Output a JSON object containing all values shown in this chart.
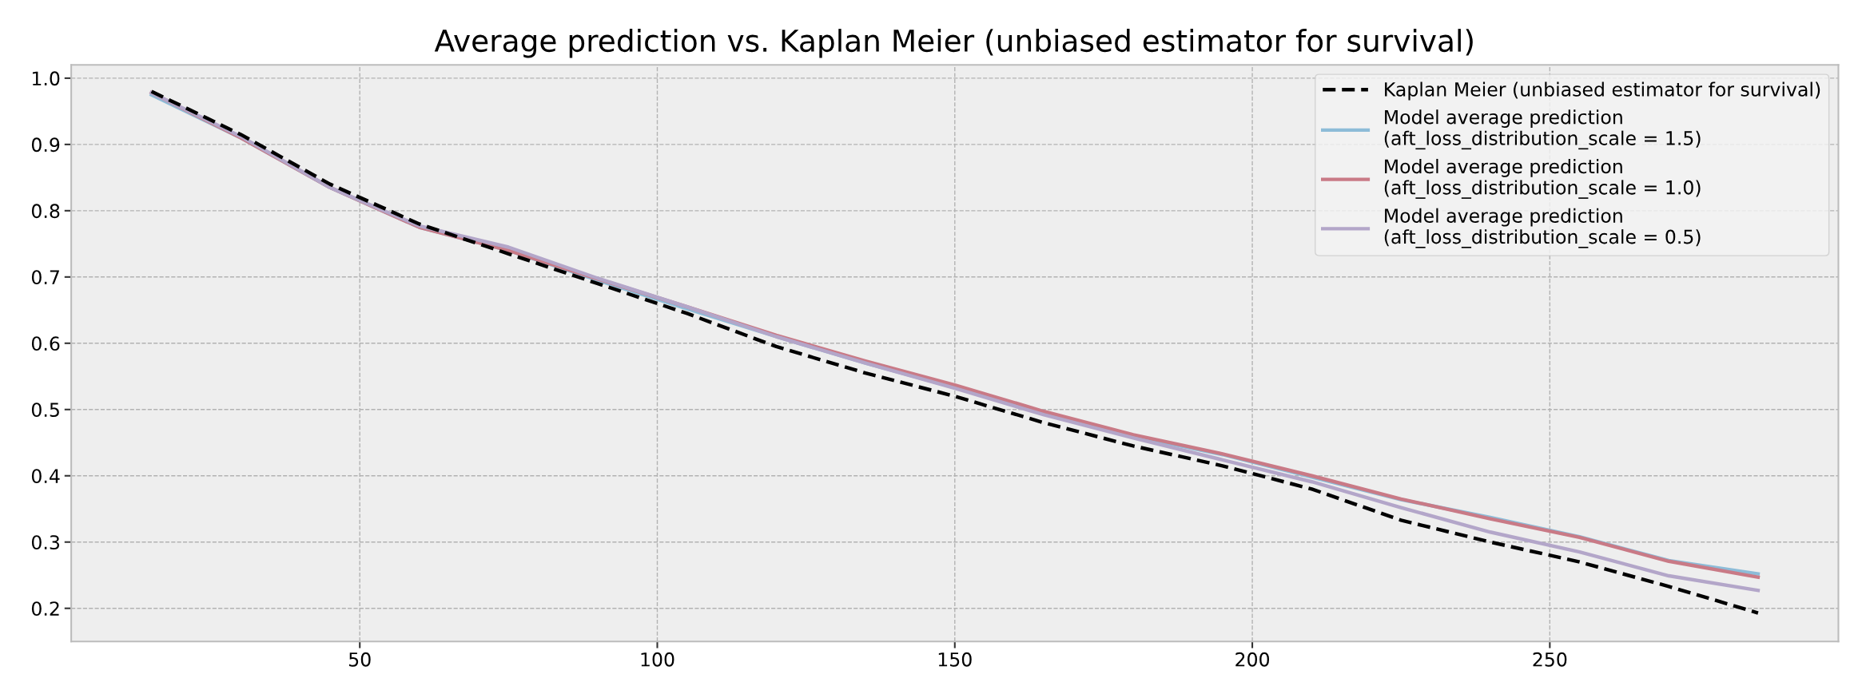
{
  "chart_data": {
    "type": "line",
    "title": "Average prediction vs. Kaplan Meier (unbiased estimator for survival)",
    "x": [
      15,
      30,
      45,
      60,
      75,
      90,
      105,
      120,
      135,
      150,
      165,
      180,
      195,
      210,
      225,
      240,
      255,
      270,
      285
    ],
    "series": [
      {
        "name": "Kaplan Meier (unbiased estimator for survival)",
        "color": "#000000",
        "line_style": "dashed",
        "values": [
          0.98,
          0.915,
          0.84,
          0.78,
          0.735,
          0.69,
          0.645,
          0.595,
          0.555,
          0.52,
          0.48,
          0.445,
          0.415,
          0.38,
          0.333,
          0.3,
          0.27,
          0.233,
          0.193
        ]
      },
      {
        "name": "Model average prediction\n(aft_loss_distribution_scale = 1.5)",
        "color": "#8dbcd8",
        "line_style": "solid",
        "values": [
          0.975,
          0.91,
          0.835,
          0.775,
          0.74,
          0.695,
          0.652,
          0.61,
          0.57,
          0.533,
          0.495,
          0.46,
          0.432,
          0.398,
          0.364,
          0.337,
          0.308,
          0.272,
          0.252
        ]
      },
      {
        "name": "Model average prediction\n(aft_loss_distribution_scale = 1.0)",
        "color": "#c97a86",
        "line_style": "solid",
        "values": [
          0.978,
          0.91,
          0.835,
          0.775,
          0.74,
          0.697,
          0.655,
          0.612,
          0.573,
          0.537,
          0.497,
          0.462,
          0.433,
          0.4,
          0.365,
          0.335,
          0.307,
          0.271,
          0.247
        ]
      },
      {
        "name": "Model average prediction\n(aft_loss_distribution_scale = 0.5)",
        "color": "#b3a6c9",
        "line_style": "solid",
        "values": [
          0.978,
          0.912,
          0.835,
          0.777,
          0.745,
          0.698,
          0.655,
          0.61,
          0.57,
          0.532,
          0.492,
          0.457,
          0.424,
          0.391,
          0.352,
          0.315,
          0.285,
          0.249,
          0.227
        ]
      }
    ],
    "xlim": [
      1.5,
      298.5
    ],
    "xticks": [
      50,
      100,
      150,
      200,
      250
    ],
    "ylim": [
      0.15,
      1.02
    ],
    "yticks": [
      0.2,
      0.3,
      0.4,
      0.5,
      0.6,
      0.7,
      0.8,
      0.9,
      {
        "value": 1.0,
        "label": "1.0"
      }
    ],
    "grid": true,
    "legend": "top right",
    "marker": "none"
  }
}
